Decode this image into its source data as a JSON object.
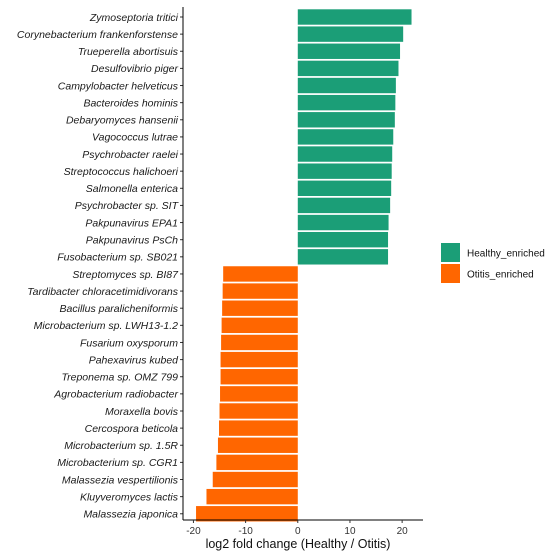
{
  "chart_data": {
    "type": "bar",
    "orientation": "horizontal",
    "xlabel": "log2 fold change (Healthy / Otitis)",
    "ylabel": "",
    "xlim": [
      -22,
      24
    ],
    "xticks": [
      -20,
      -10,
      0,
      10,
      20
    ],
    "grid": false,
    "legend_position": "right",
    "colors": {
      "Healthy_enriched": "#1b9e77",
      "Otitis_enriched": "#ff6600"
    },
    "series": [
      {
        "name": "Healthy_enriched",
        "color": "#1b9e77"
      },
      {
        "name": "Otitis_enriched",
        "color": "#ff6600"
      }
    ],
    "bars": [
      {
        "label": "Zymoseptoria tritici",
        "value": 21.8,
        "group": "Healthy_enriched"
      },
      {
        "label": "Corynebacterium frankenforstense",
        "value": 20.2,
        "group": "Healthy_enriched"
      },
      {
        "label": "Trueperella abortisuis",
        "value": 19.6,
        "group": "Healthy_enriched"
      },
      {
        "label": "Desulfovibrio piger",
        "value": 19.3,
        "group": "Healthy_enriched"
      },
      {
        "label": "Campylobacter helveticus",
        "value": 18.8,
        "group": "Healthy_enriched"
      },
      {
        "label": "Bacteroides hominis",
        "value": 18.7,
        "group": "Healthy_enriched"
      },
      {
        "label": "Debaryomyces hansenii",
        "value": 18.6,
        "group": "Healthy_enriched"
      },
      {
        "label": "Vagococcus lutrae",
        "value": 18.3,
        "group": "Healthy_enriched"
      },
      {
        "label": "Psychrobacter raelei",
        "value": 18.1,
        "group": "Healthy_enriched"
      },
      {
        "label": "Streptococcus halichoeri",
        "value": 18.0,
        "group": "Healthy_enriched"
      },
      {
        "label": "Salmonella enterica",
        "value": 17.9,
        "group": "Healthy_enriched"
      },
      {
        "label": "Psychrobacter sp. SIT",
        "value": 17.7,
        "group": "Healthy_enriched"
      },
      {
        "label": "Pakpunavirus EPA1",
        "value": 17.4,
        "group": "Healthy_enriched"
      },
      {
        "label": "Pakpunavirus PsCh",
        "value": 17.3,
        "group": "Healthy_enriched"
      },
      {
        "label": "Fusobacterium sp. SB021",
        "value": 17.3,
        "group": "Healthy_enriched"
      },
      {
        "label": "Streptomyces sp. BI87",
        "value": -14.3,
        "group": "Otitis_enriched"
      },
      {
        "label": "Tardibacter chloracetimidivorans",
        "value": -14.4,
        "group": "Otitis_enriched"
      },
      {
        "label": "Bacillus paralicheniformis",
        "value": -14.5,
        "group": "Otitis_enriched"
      },
      {
        "label": "Microbacterium sp. LWH13-1.2",
        "value": -14.6,
        "group": "Otitis_enriched"
      },
      {
        "label": "Fusarium oxysporum",
        "value": -14.7,
        "group": "Otitis_enriched"
      },
      {
        "label": "Pahexavirus kubed",
        "value": -14.8,
        "group": "Otitis_enriched"
      },
      {
        "label": "Treponema sp. OMZ 799",
        "value": -14.8,
        "group": "Otitis_enriched"
      },
      {
        "label": "Agrobacterium radiobacter",
        "value": -14.9,
        "group": "Otitis_enriched"
      },
      {
        "label": "Moraxella bovis",
        "value": -15.0,
        "group": "Otitis_enriched"
      },
      {
        "label": "Cercospora beticola",
        "value": -15.1,
        "group": "Otitis_enriched"
      },
      {
        "label": "Microbacterium sp. 1.5R",
        "value": -15.3,
        "group": "Otitis_enriched"
      },
      {
        "label": "Microbacterium sp. CGR1",
        "value": -15.6,
        "group": "Otitis_enriched"
      },
      {
        "label": "Malassezia vespertilionis",
        "value": -16.3,
        "group": "Otitis_enriched"
      },
      {
        "label": "Kluyveromyces lactis",
        "value": -17.5,
        "group": "Otitis_enriched"
      },
      {
        "label": "Malassezia japonica",
        "value": -19.5,
        "group": "Otitis_enriched"
      }
    ]
  }
}
